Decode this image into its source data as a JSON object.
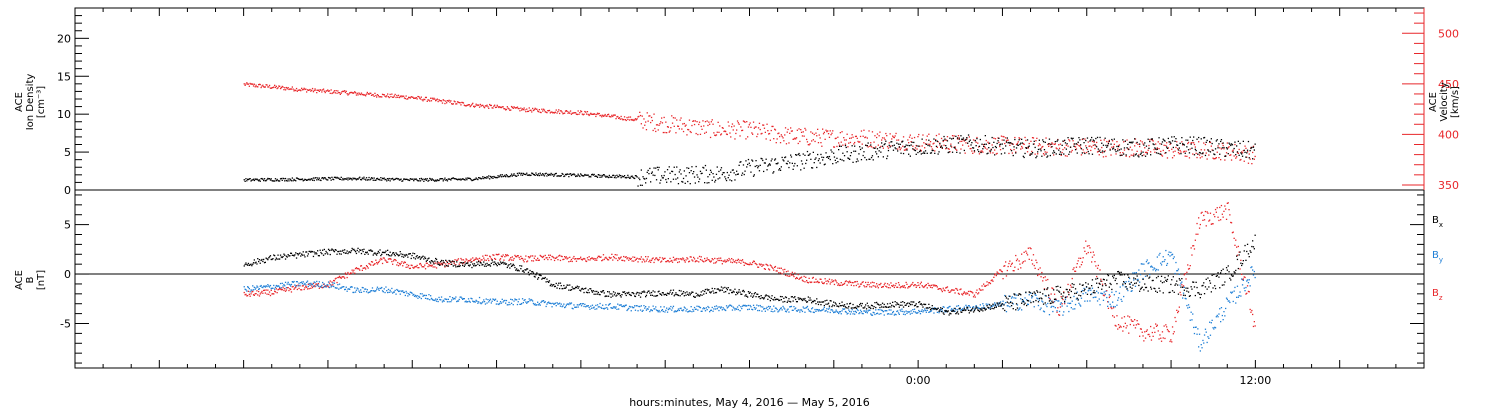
{
  "chart_data": [
    {
      "type": "scatter",
      "panel": "top",
      "ylabel": "ACE Ion Density [cm^-3]",
      "ylabel_lines": [
        "ACE",
        "Ion Density",
        "[cm⁻³]"
      ],
      "y2label": "ACE Velocity [km/s]",
      "y2label_lines": [
        "ACE",
        "Velocity",
        "[km/s]"
      ],
      "ylim": [
        0,
        24
      ],
      "y2lim": [
        345,
        525
      ],
      "y_ticks": [
        0,
        5,
        10,
        15,
        20
      ],
      "y2_ticks": [
        350,
        400,
        450,
        500
      ],
      "series": [
        {
          "name": "Ion Density",
          "color": "#000000",
          "axis": "left",
          "x_hours": [
            -24,
            -22,
            -20,
            -18,
            -16,
            -14,
            -12,
            -10,
            -9,
            -8,
            -7,
            -6,
            -5,
            -4,
            -3,
            -2,
            -1,
            0,
            1,
            2,
            3,
            4,
            5,
            6,
            7,
            8,
            9,
            10,
            11,
            12
          ],
          "values": [
            1.4,
            1.5,
            1.6,
            1.4,
            1.5,
            2.2,
            2.0,
            1.8,
            2.0,
            2.1,
            2.2,
            3.0,
            3.5,
            4.0,
            4.6,
            5.0,
            5.5,
            5.8,
            6.0,
            6.2,
            5.8,
            5.5,
            5.7,
            6.0,
            5.8,
            5.6,
            6.0,
            5.9,
            5.5,
            5.2
          ]
        },
        {
          "name": "Velocity",
          "color": "#e8262a",
          "axis": "right",
          "x_hours": [
            -24,
            -22,
            -20,
            -18,
            -16,
            -14,
            -12,
            -10,
            -9,
            -8,
            -7,
            -6,
            -5,
            -4,
            -3,
            -2,
            -1,
            0,
            1,
            2,
            3,
            4,
            5,
            6,
            7,
            8,
            9,
            10,
            11,
            12
          ],
          "values": [
            450,
            445,
            441,
            437,
            430,
            425,
            422,
            415,
            411,
            408,
            405,
            405,
            400,
            398,
            397,
            397,
            395,
            393,
            392,
            390,
            390,
            389,
            388,
            388,
            387,
            388,
            385,
            385,
            384,
            380
          ]
        }
      ]
    },
    {
      "type": "scatter",
      "panel": "bottom",
      "ylabel": "ACE B [nT]",
      "ylabel_lines": [
        "ACE",
        "B",
        "[nT]"
      ],
      "ylim": [
        -9.5,
        8.5
      ],
      "y_ticks": [
        -5,
        0,
        5
      ],
      "legend_position": "right",
      "legend": [
        {
          "label": "B",
          "sub": "x",
          "color": "#000000"
        },
        {
          "label": "B",
          "sub": "y",
          "color": "#1f7fd6"
        },
        {
          "label": "B",
          "sub": "z",
          "color": "#e8262a"
        }
      ],
      "series": [
        {
          "name": "Bx",
          "color": "#000000",
          "x_hours": [
            -24,
            -23,
            -22,
            -21,
            -20,
            -19,
            -18,
            -17,
            -16,
            -15,
            -14,
            -13,
            -12,
            -11,
            -10,
            -9,
            -8,
            -7,
            -6,
            -5,
            -4,
            -3,
            -2,
            -1,
            0,
            1,
            2,
            3,
            4,
            5,
            6,
            7,
            8,
            9,
            10,
            11,
            12
          ],
          "values": [
            1.0,
            1.7,
            2.0,
            2.3,
            2.4,
            2.2,
            1.9,
            1.2,
            1.0,
            1.2,
            0.5,
            -1.0,
            -1.5,
            -2.0,
            -2.0,
            -1.8,
            -2.0,
            -1.5,
            -2.0,
            -2.5,
            -2.5,
            -3.0,
            -3.2,
            -3.0,
            -3.0,
            -3.8,
            -3.5,
            -3.0,
            -2.5,
            -2.0,
            -1.5,
            -0.5,
            -1.0,
            -1.0,
            -1.5,
            0.0,
            3.5
          ]
        },
        {
          "name": "By",
          "color": "#1f7fd6",
          "x_hours": [
            -24,
            -23,
            -22,
            -21,
            -20,
            -19,
            -18,
            -17,
            -16,
            -15,
            -14,
            -13,
            -12,
            -11,
            -10,
            -9,
            -8,
            -7,
            -6,
            -5,
            -4,
            -3,
            -2,
            -1,
            0,
            1,
            2,
            3,
            4,
            5,
            6,
            7,
            8,
            9,
            10,
            11,
            12
          ],
          "values": [
            -1.5,
            -1.2,
            -0.9,
            -1.0,
            -1.6,
            -1.5,
            -2.0,
            -2.5,
            -2.5,
            -2.8,
            -2.7,
            -3.0,
            -3.2,
            -3.2,
            -3.4,
            -3.5,
            -3.5,
            -3.4,
            -3.3,
            -3.5,
            -3.5,
            -3.6,
            -3.8,
            -3.8,
            -3.7,
            -3.5,
            -3.3,
            -3.0,
            -2.5,
            -3.5,
            -2.0,
            -2.5,
            0.5,
            2.0,
            -7.0,
            -3.0,
            0.5
          ]
        },
        {
          "name": "Bz",
          "color": "#e8262a",
          "x_hours": [
            -24,
            -23,
            -22,
            -21,
            -20,
            -19,
            -18,
            -17,
            -16,
            -15,
            -14,
            -13,
            -12,
            -11,
            -10,
            -9,
            -8,
            -7,
            -6,
            -5,
            -4,
            -3,
            -2,
            -1,
            0,
            1,
            2,
            3,
            4,
            5,
            6,
            7,
            8,
            9,
            10,
            11,
            12
          ],
          "values": [
            -2.0,
            -1.8,
            -1.3,
            -1.0,
            0.5,
            1.5,
            0.8,
            1.0,
            1.5,
            1.8,
            1.6,
            1.7,
            1.5,
            1.8,
            1.6,
            1.4,
            1.6,
            1.4,
            1.2,
            0.5,
            -0.5,
            -0.8,
            -1.0,
            -1.1,
            -1.0,
            -1.5,
            -2.0,
            0.5,
            2.0,
            -3.5,
            3.0,
            -4.5,
            -5.8,
            -6.0,
            5.5,
            6.5,
            -5.5
          ]
        }
      ]
    }
  ],
  "x_axis": {
    "label": "hours:minutes, May  4, 2016 — May  5, 2016",
    "range_hours": [
      -30,
      18
    ],
    "tick_labels": [
      {
        "hour": 0,
        "text": "0:00"
      },
      {
        "hour": 12,
        "text": "12:00"
      }
    ]
  }
}
